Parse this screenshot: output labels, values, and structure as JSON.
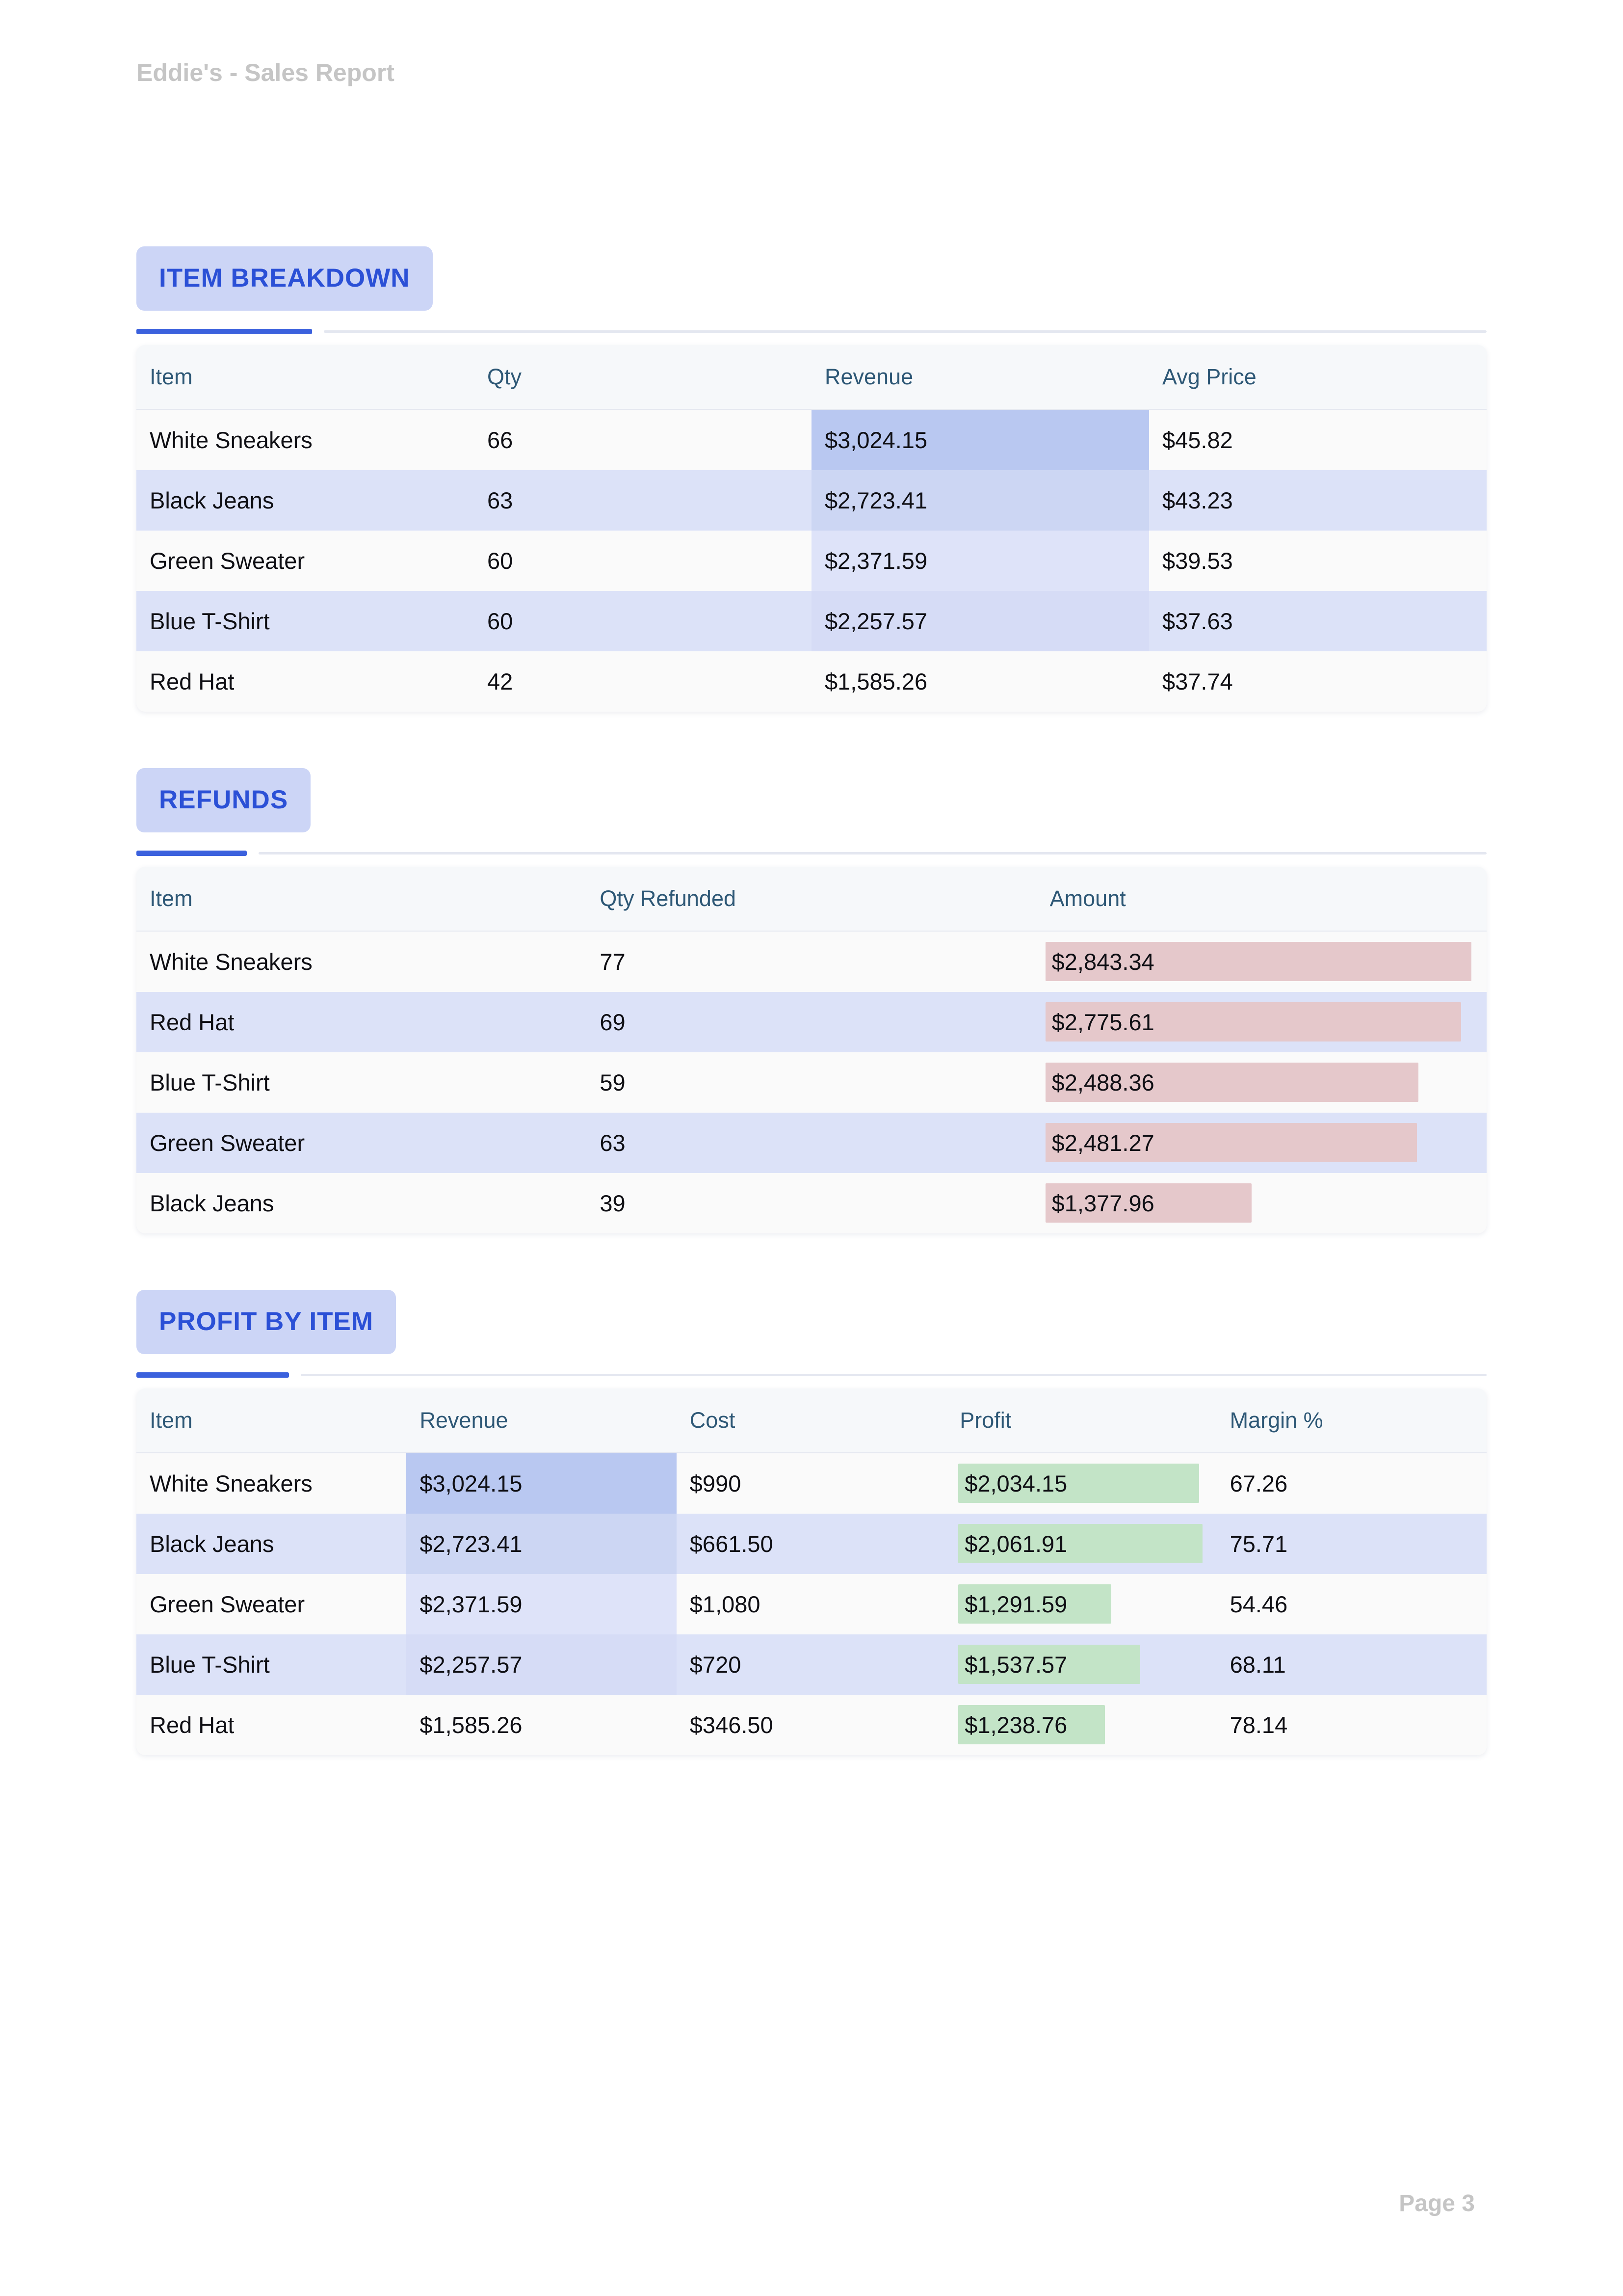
{
  "page": {
    "title": "Eddie's - Sales Report",
    "footer": "Page 3"
  },
  "colors": {
    "accent_blue": "#3b61dd",
    "badge_text": "#2b50d6",
    "badge_bg": "#ccd5f6",
    "table_header_text": "#2e5876",
    "row_stripe": "#dce2f8",
    "row_plain": "#fafafa",
    "refund_bar_pink": "#e5c8cb",
    "profit_bar_green": "#c3e4c7",
    "revenue_heat_scale": [
      "#b9c8f1",
      "#ccd6f3",
      "#dee3f9",
      "#d6dcf6",
      ""
    ]
  },
  "sections": [
    {
      "label": "ITEM BREAKDOWN",
      "table": {
        "columns": [
          "Item",
          "Qty",
          "Revenue",
          "Avg Price"
        ],
        "rows": [
          [
            "White Sneakers",
            "66",
            "$3,024.15",
            "$45.82"
          ],
          [
            "Black Jeans",
            "63",
            "$2,723.41",
            "$43.23"
          ],
          [
            "Green Sweater",
            "60",
            "$2,371.59",
            "$39.53"
          ],
          [
            "Blue T-Shirt",
            "60",
            "$2,257.57",
            "$37.63"
          ],
          [
            "Red Hat",
            "42",
            "$1,585.26",
            "$37.74"
          ]
        ],
        "heat": {
          "column": 2,
          "colors": [
            "#b9c8f1",
            "#ccd6f3",
            "#dee3f9",
            "#d6dcf6",
            ""
          ]
        }
      }
    },
    {
      "label": "REFUNDS",
      "table": {
        "columns": [
          "Item",
          "Qty Refunded",
          "Amount"
        ],
        "rows": [
          [
            "White Sneakers",
            "77",
            "$2,843.34"
          ],
          [
            "Red Hat",
            "69",
            "$2,775.61"
          ],
          [
            "Blue T-Shirt",
            "59",
            "$2,488.36"
          ],
          [
            "Green Sweater",
            "63",
            "$2,481.27"
          ],
          [
            "Black Jeans",
            "39",
            "$1,377.96"
          ]
        ],
        "bars": {
          "column": 2,
          "name": "refund-amount-bar",
          "color": "#e5c8cb",
          "values": [
            2843.34,
            2775.61,
            2488.36,
            2481.27,
            1377.96
          ],
          "max": 2843.34
        }
      }
    },
    {
      "label": "PROFIT BY ITEM",
      "table": {
        "columns": [
          "Item",
          "Revenue",
          "Cost",
          "Profit",
          "Margin %"
        ],
        "rows": [
          [
            "White Sneakers",
            "$3,024.15",
            "$990",
            "$2,034.15",
            "67.26"
          ],
          [
            "Black Jeans",
            "$2,723.41",
            "$661.50",
            "$2,061.91",
            "75.71"
          ],
          [
            "Green Sweater",
            "$2,371.59",
            "$1,080",
            "$1,291.59",
            "54.46"
          ],
          [
            "Blue T-Shirt",
            "$2,257.57",
            "$720",
            "$1,537.57",
            "68.11"
          ],
          [
            "Red Hat",
            "$1,585.26",
            "$346.50",
            "$1,238.76",
            "78.14"
          ]
        ],
        "heat": {
          "column": 1,
          "colors": [
            "#b9c8f1",
            "#ccd6f3",
            "#dee3f9",
            "#d6dcf6",
            ""
          ]
        },
        "bars": {
          "column": 3,
          "name": "profit-bar",
          "color": "#c3e4c7",
          "values": [
            2034.15,
            2061.91,
            1291.59,
            1537.57,
            1238.76
          ],
          "max": 2061.91
        }
      }
    }
  ]
}
